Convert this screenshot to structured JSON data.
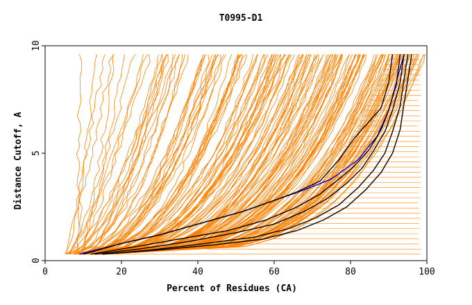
{
  "chart_data": {
    "type": "line",
    "title": "T0995-D1",
    "xlabel": "Percent of Residues (CA)",
    "ylabel": "Distance Cutoff, A",
    "xlim": [
      0,
      100
    ],
    "ylim": [
      0,
      10
    ],
    "xticks": [
      0,
      20,
      40,
      60,
      80,
      100
    ],
    "yticks": [
      0,
      5,
      10
    ],
    "grid": false,
    "legend": "none",
    "colors": {
      "background_models": "#ff8000",
      "highlight_black": "#000000",
      "highlight_blue": "#0000cc"
    },
    "series": [
      {
        "color": "#0000cc",
        "x": [
          9,
          20,
          30,
          42,
          52,
          60,
          68,
          75,
          82,
          87,
          90,
          92,
          94
        ],
        "y": [
          0.3,
          0.8,
          1.2,
          1.8,
          2.3,
          2.8,
          3.3,
          3.8,
          4.7,
          5.8,
          7.0,
          8.3,
          9.6
        ]
      },
      {
        "color": "#000000",
        "x": [
          10,
          20,
          30,
          42,
          52,
          60,
          66,
          72,
          77,
          81,
          85,
          88,
          90,
          91
        ],
        "y": [
          0.3,
          0.8,
          1.2,
          1.8,
          2.3,
          2.8,
          3.2,
          3.7,
          4.7,
          5.7,
          6.5,
          7.1,
          8.3,
          9.6
        ]
      },
      {
        "color": "#000000",
        "x": [
          12,
          22,
          35,
          48,
          58,
          66,
          72,
          77,
          81,
          85,
          88,
          90,
          92,
          93
        ],
        "y": [
          0.3,
          0.6,
          1.0,
          1.4,
          1.9,
          2.5,
          3.1,
          3.8,
          4.4,
          5.2,
          6.1,
          7.0,
          8.2,
          9.6
        ]
      },
      {
        "color": "#000000",
        "x": [
          13,
          25,
          38,
          50,
          60,
          68,
          74,
          79,
          83,
          86,
          89,
          91,
          93,
          94
        ],
        "y": [
          0.3,
          0.55,
          0.9,
          1.3,
          1.7,
          2.3,
          2.9,
          3.6,
          4.3,
          5.1,
          6.0,
          7.0,
          8.3,
          9.6
        ]
      },
      {
        "color": "#000000",
        "x": [
          15,
          28,
          42,
          55,
          64,
          71,
          77,
          82,
          86,
          89,
          91,
          93,
          94,
          95
        ],
        "y": [
          0.3,
          0.5,
          0.8,
          1.1,
          1.5,
          2.0,
          2.6,
          3.4,
          4.2,
          5.0,
          6.0,
          7.2,
          8.4,
          9.6
        ]
      },
      {
        "color": "#000000",
        "x": [
          15,
          30,
          45,
          57,
          66,
          73,
          79,
          84,
          88,
          91,
          93,
          94,
          95,
          96
        ],
        "y": [
          0.3,
          0.5,
          0.75,
          1.0,
          1.4,
          1.9,
          2.5,
          3.3,
          4.1,
          5.0,
          6.1,
          7.3,
          8.4,
          9.6
        ]
      }
    ]
  }
}
